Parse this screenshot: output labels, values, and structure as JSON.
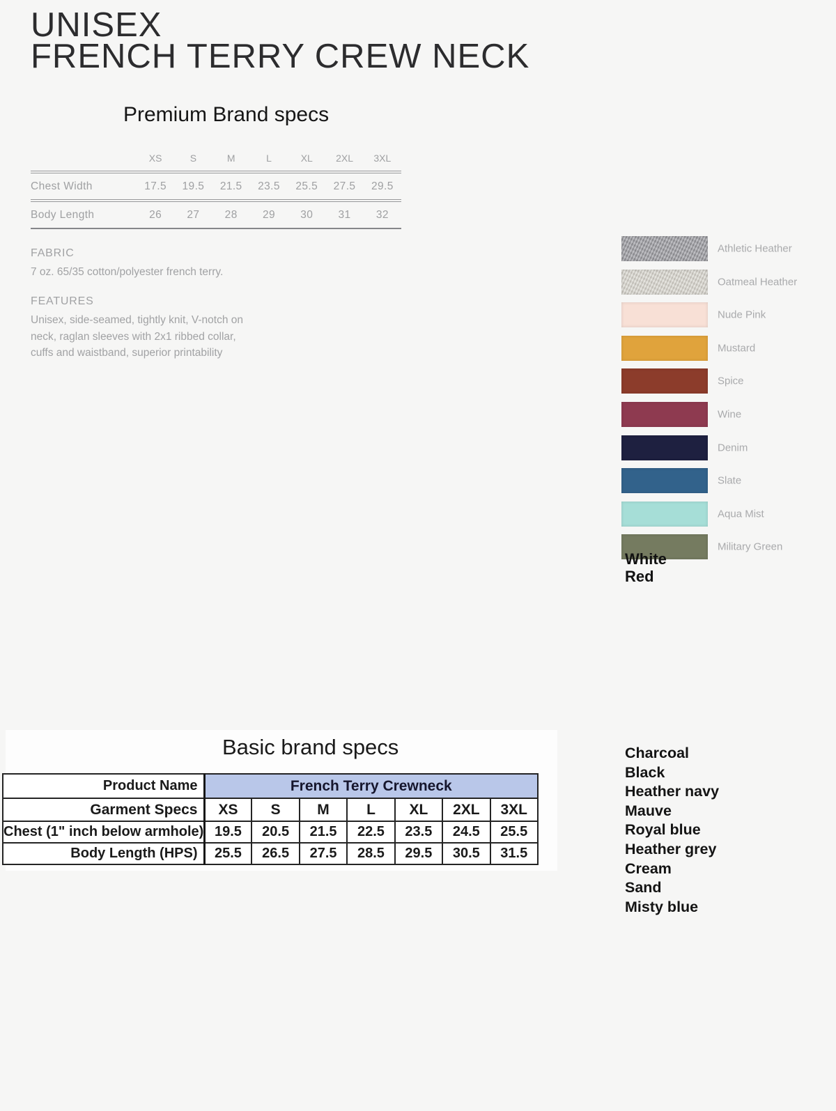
{
  "product": {
    "title_line1": "UNISEX",
    "title_line2": "FRENCH TERRY CREW NECK"
  },
  "premium_section": {
    "heading": "Premium Brand specs",
    "size_columns": [
      "XS",
      "S",
      "M",
      "L",
      "XL",
      "2XL",
      "3XL"
    ],
    "rows": [
      {
        "label": "Chest Width",
        "values": [
          "17.5",
          "19.5",
          "21.5",
          "23.5",
          "25.5",
          "27.5",
          "29.5"
        ]
      },
      {
        "label": "Body Length",
        "values": [
          "26",
          "27",
          "28",
          "29",
          "30",
          "31",
          "32"
        ]
      }
    ],
    "fabric_heading": "FABRIC",
    "fabric_text": "7 oz. 65/35 cotton/polyester french terry.",
    "features_heading": "FEATURES",
    "features_lines": [
      "Unisex, side-seamed, tightly knit, V-notch on",
      "neck, raglan sleeves with 2x1 ribbed collar,",
      "cuffs and waistband, superior printability"
    ],
    "swatches": [
      {
        "name": "Athletic Heather",
        "hex": "#9a9a9f"
      },
      {
        "name": "Oatmeal Heather",
        "hex": "#d8d5cd"
      },
      {
        "name": "Nude Pink",
        "hex": "#f8e0d6"
      },
      {
        "name": "Mustard",
        "hex": "#e0a33c"
      },
      {
        "name": "Spice",
        "hex": "#8c3c2b"
      },
      {
        "name": "Wine",
        "hex": "#8e3a50"
      },
      {
        "name": "Denim",
        "hex": "#1e2040"
      },
      {
        "name": "Slate",
        "hex": "#32628b"
      },
      {
        "name": "Aqua Mist",
        "hex": "#a6ded7"
      },
      {
        "name": "Military Green",
        "hex": "#757b60"
      }
    ],
    "extra_colors": [
      "White",
      "Red"
    ]
  },
  "basic_section": {
    "heading": "Basic brand specs",
    "table": {
      "product_name_label": "Product Name",
      "product_name_value": "French Terry Crewneck",
      "garment_specs_label": "Garment Specs",
      "sizes": [
        "XS",
        "S",
        "M",
        "L",
        "XL",
        "2XL",
        "3XL"
      ],
      "rows": [
        {
          "label": "Chest (1\" inch below armhole)",
          "values": [
            "19.5",
            "20.5",
            "21.5",
            "22.5",
            "23.5",
            "24.5",
            "25.5"
          ]
        },
        {
          "label": "Body Length (HPS)",
          "values": [
            "25.5",
            "26.5",
            "27.5",
            "28.5",
            "29.5",
            "30.5",
            "31.5"
          ]
        }
      ],
      "header_fill": "#b9c7e9"
    },
    "additional_colors": [
      "Charcoal",
      "Black",
      "Heather navy",
      "Mauve",
      "Royal blue",
      "Heather grey",
      "Cream",
      "Sand",
      "Misty blue"
    ]
  }
}
